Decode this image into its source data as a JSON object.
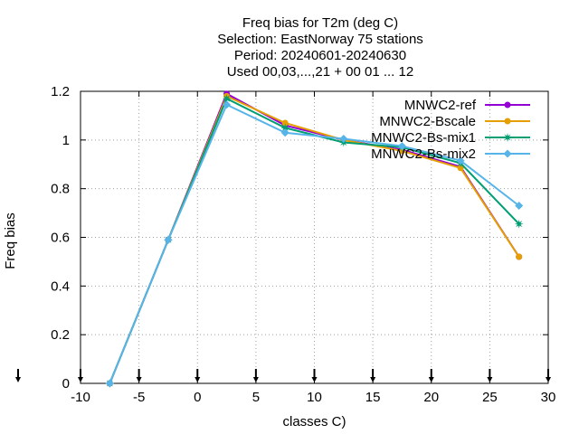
{
  "chart_data": {
    "type": "line",
    "title_lines": [
      "Freq bias  for T2m (deg C)",
      "Selection: EastNorway     75 stations",
      "Period: 20240601-20240630",
      "Used 00,03,...,21 + 00 01 ... 12"
    ],
    "xlabel": "classes C)",
    "ylabel": "Freq bias",
    "xlim": [
      -10,
      30
    ],
    "ylim": [
      0,
      1.2
    ],
    "xticks": [
      -10,
      -5,
      0,
      5,
      10,
      15,
      20,
      25,
      30
    ],
    "yticks": [
      0,
      0.2,
      0.4,
      0.6,
      0.8,
      1,
      1.2
    ],
    "xtick_labels": [
      "-10",
      "-5",
      "0",
      "5",
      "10",
      "15",
      "20",
      "25",
      "30"
    ],
    "ytick_labels": [
      "0",
      "0.2",
      "0.4",
      "0.6",
      "0.8",
      "1",
      "1.2"
    ],
    "grid": true,
    "legend_position": "top-right",
    "x": [
      -7.5,
      -2.5,
      2.5,
      7.5,
      12.5,
      17.5,
      22.5,
      27.5
    ],
    "series": [
      {
        "name": "MNWC2-ref",
        "color": "#9400d3",
        "marker": "circle",
        "values": [
          0,
          0.59,
          1.19,
          1.06,
          1.0,
          0.96,
          0.89,
          0.52
        ]
      },
      {
        "name": "MNWC2-Bscale",
        "color": "#e69f00",
        "marker": "circle",
        "values": [
          0,
          0.59,
          1.18,
          1.07,
          1.0,
          0.955,
          0.885,
          0.52
        ]
      },
      {
        "name": "MNWC2-Bs-mix1",
        "color": "#009e73",
        "marker": "star",
        "values": [
          0,
          0.59,
          1.17,
          1.05,
          0.99,
          0.97,
          0.905,
          0.655
        ]
      },
      {
        "name": "MNWC2-Bs-mix2",
        "color": "#56b4e9",
        "marker": "diamond",
        "values": [
          0,
          0.59,
          1.145,
          1.03,
          1.005,
          0.975,
          0.915,
          0.73
        ]
      }
    ],
    "bottom_markers_x": [
      -10,
      -5,
      0,
      5,
      10,
      15,
      20,
      25,
      30
    ]
  }
}
